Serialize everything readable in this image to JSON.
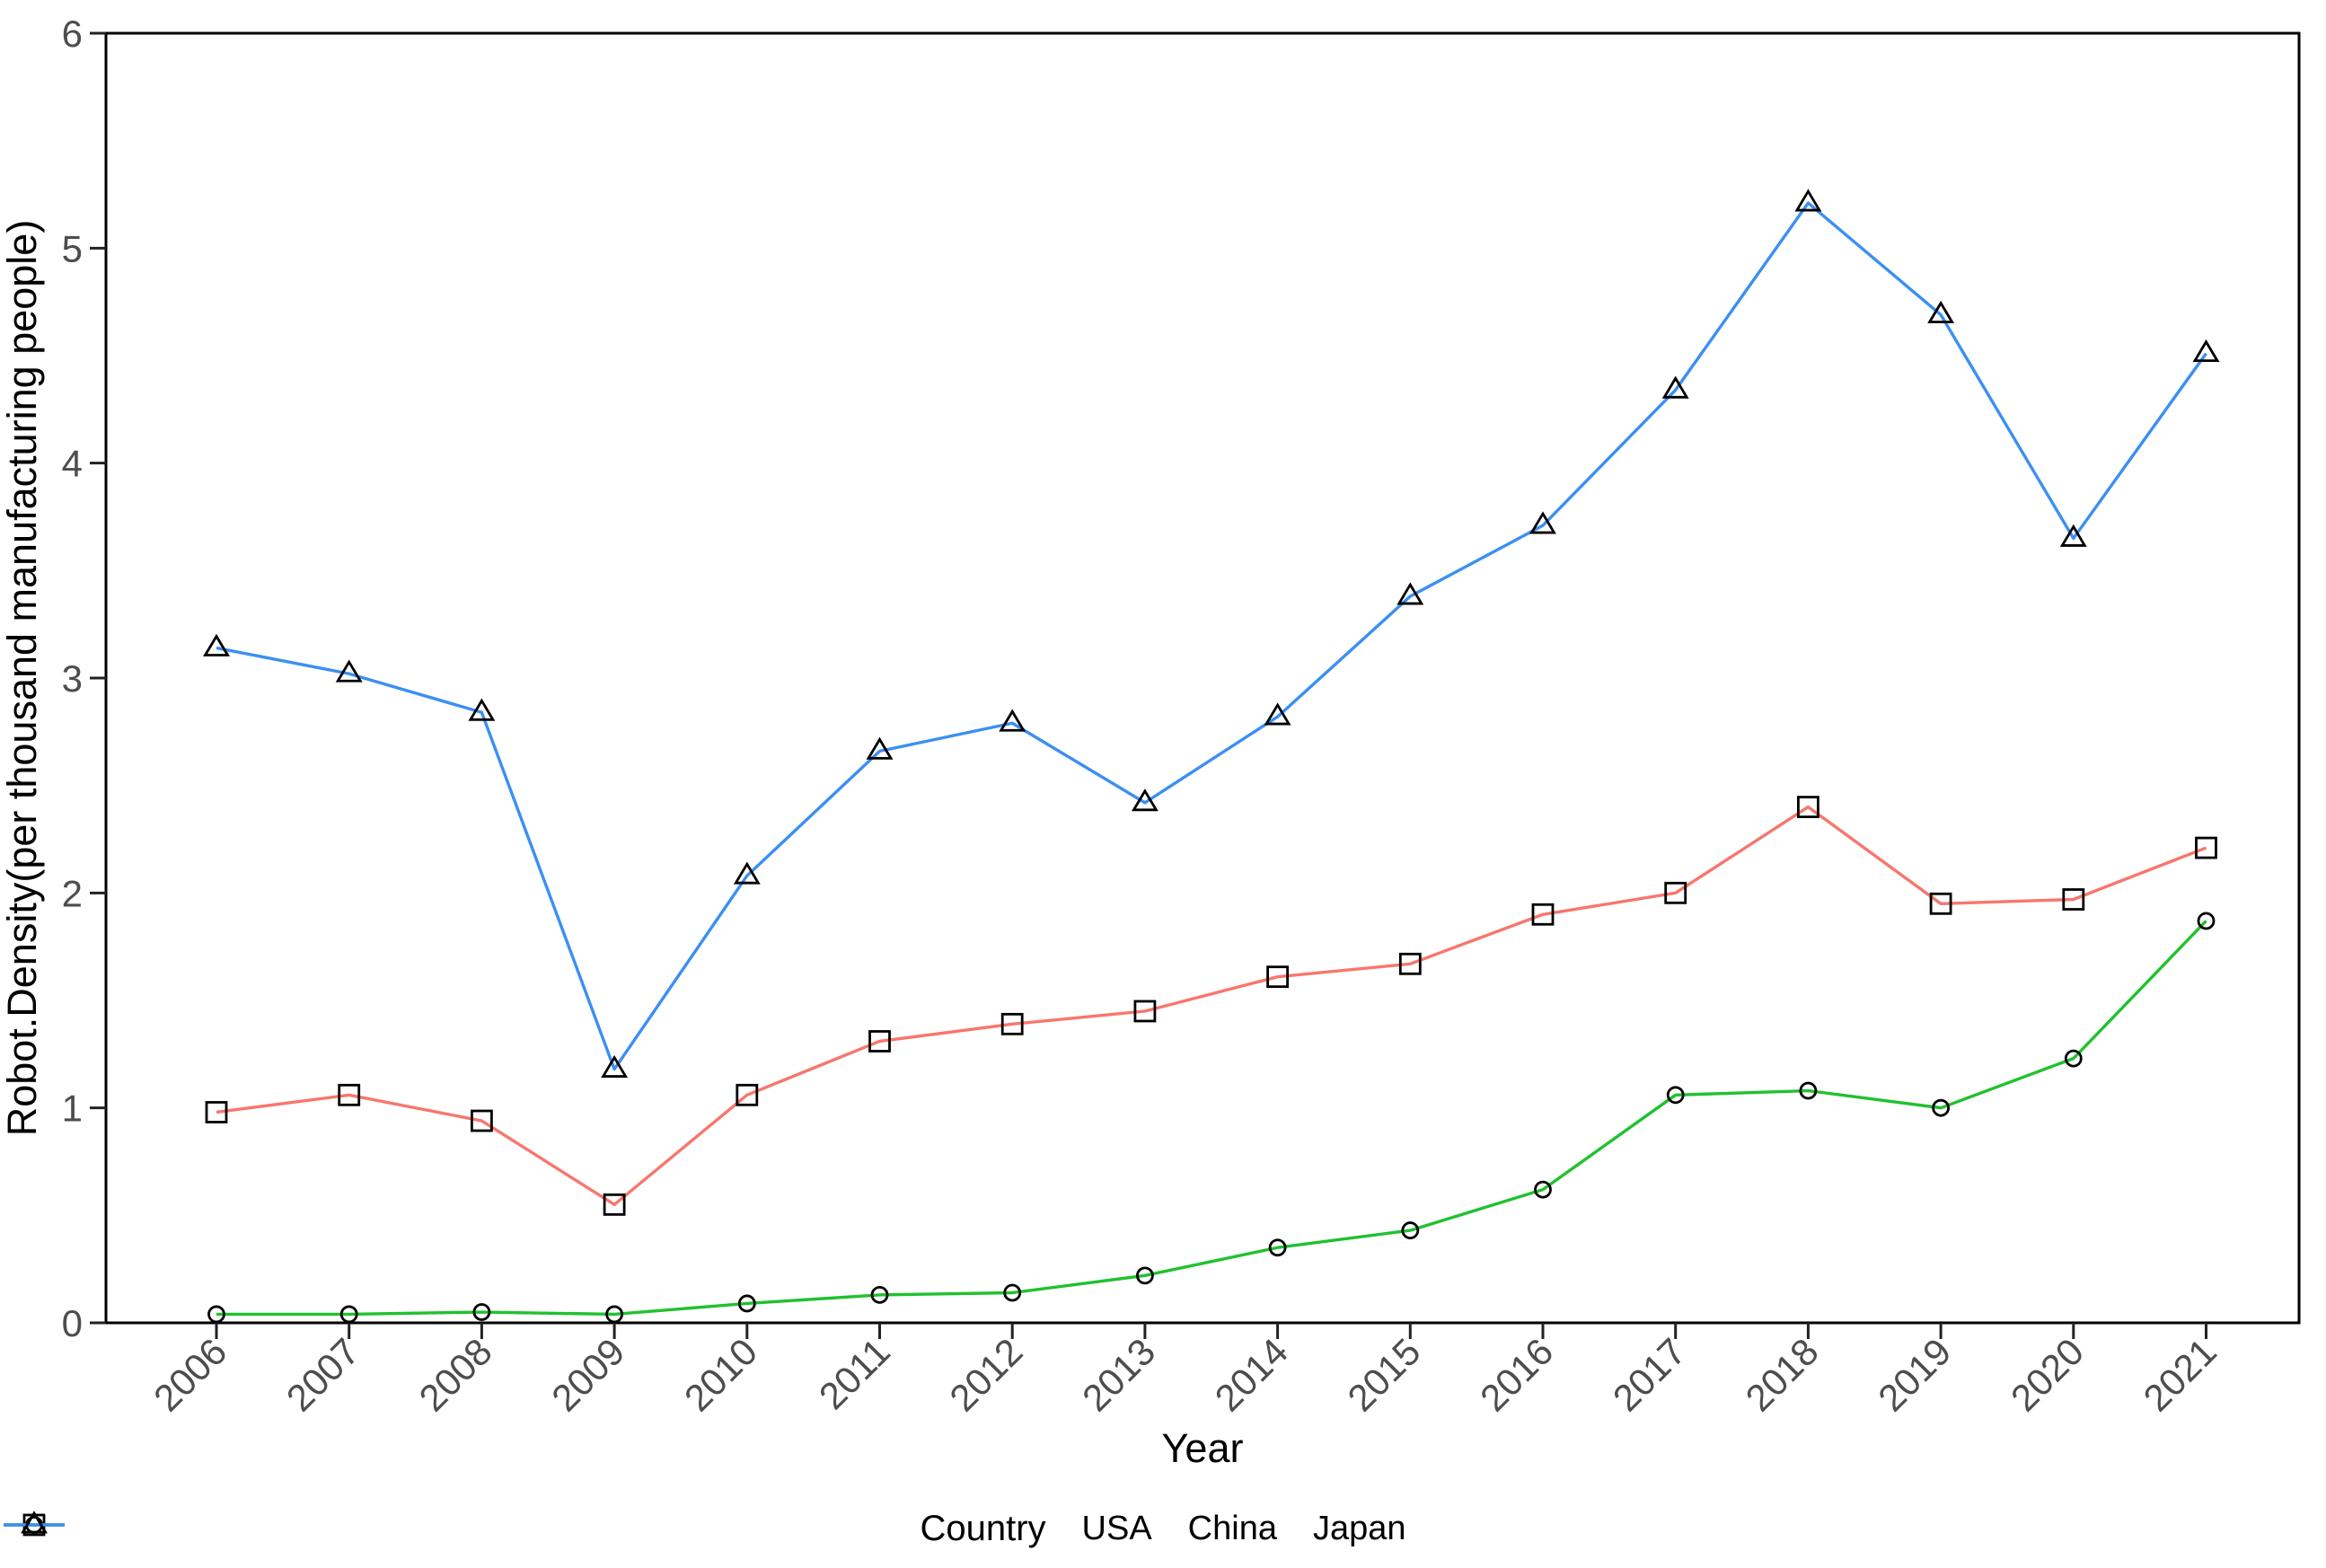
{
  "chart_data": {
    "type": "line",
    "title": "",
    "xlabel": "Year",
    "ylabel": "Robot.Density(per thousand manufacturing people)",
    "legend_title": "Country",
    "legend_position": "bottom",
    "grid": false,
    "background": "#ffffff",
    "axis_text_color": "#4d4d4d",
    "marker_outline_color": "#000000",
    "ylim": [
      0,
      6
    ],
    "yticks": [
      0,
      1,
      2,
      3,
      4,
      5,
      6
    ],
    "x": [
      2006,
      2007,
      2008,
      2009,
      2010,
      2011,
      2012,
      2013,
      2014,
      2015,
      2016,
      2017,
      2018,
      2019,
      2020,
      2021
    ],
    "series": [
      {
        "name": "USA",
        "color": "#F8766D",
        "marker": "square",
        "values": [
          0.98,
          1.06,
          0.94,
          0.55,
          1.06,
          1.31,
          1.39,
          1.45,
          1.61,
          1.67,
          1.9,
          2.0,
          2.4,
          1.95,
          1.97,
          2.21
        ]
      },
      {
        "name": "China",
        "color": "#20C12F",
        "marker": "circle",
        "values": [
          0.04,
          0.04,
          0.05,
          0.04,
          0.09,
          0.13,
          0.14,
          0.22,
          0.35,
          0.43,
          0.62,
          1.06,
          1.08,
          1.0,
          1.23,
          1.87
        ]
      },
      {
        "name": "Japan",
        "color": "#3B8FF3",
        "marker": "triangle-up",
        "values": [
          3.14,
          3.02,
          2.84,
          1.18,
          2.08,
          2.66,
          2.79,
          2.42,
          2.82,
          3.38,
          3.71,
          4.34,
          5.21,
          4.69,
          3.65,
          4.51
        ]
      }
    ]
  }
}
